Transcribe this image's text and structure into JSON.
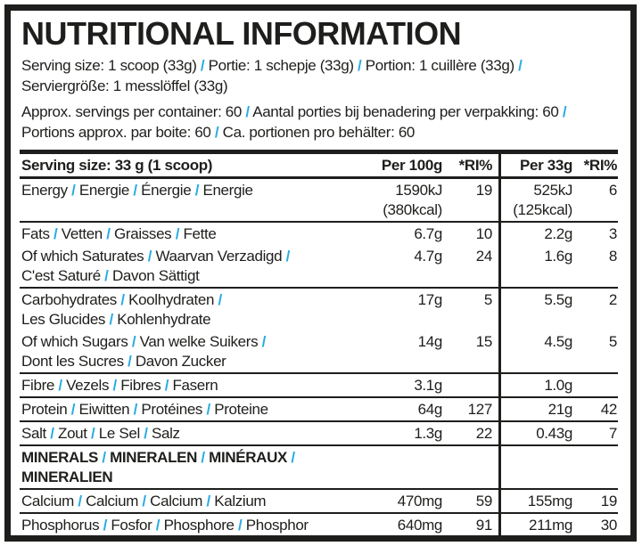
{
  "colors": {
    "ink": "#1e1e1c",
    "accent_blue": "#29abe2"
  },
  "title": "NUTRITIONAL INFORMATION",
  "intro": {
    "serving_size_line1": {
      "parts": [
        "Serving size: 1 scoop (33g)",
        "Portie: 1 schepje (33g)",
        "Portion: 1 cuillère (33g)"
      ],
      "cont": true
    },
    "serving_size_line2": {
      "parts": [
        "Serviergröße: 1 messlöffel (33g)"
      ],
      "cont": false
    },
    "servings_per_container": {
      "parts": [
        "Approx. servings per container: 60",
        "Aantal porties bij benadering per verpakking: 60",
        "Portions approx. par boite: 60",
        "Ca. portionen pro behälter: 60"
      ],
      "cont": false
    }
  },
  "table": {
    "header": {
      "serving_size": "Serving size: 33 g (1 scoop)",
      "per_100g": "Per 100g",
      "ri_1": "*RI%",
      "per_33g": "Per 33g",
      "ri_2": "*RI%"
    },
    "sections": [
      {
        "id": "energy",
        "rows": [
          {
            "label": [
              {
                "parts": [
                  "Energy",
                  "Energie",
                  "Énergie",
                  "Energie"
                ],
                "cont": false
              }
            ],
            "per100": [
              "1590kJ",
              "(380kcal)"
            ],
            "ri100": [
              "19"
            ],
            "per33": [
              "525kJ",
              "(125kcal)"
            ],
            "ri33": [
              "6"
            ]
          }
        ]
      },
      {
        "id": "fats",
        "rows": [
          {
            "label": [
              {
                "parts": [
                  "Fats",
                  "Vetten",
                  "Graisses",
                  "Fette"
                ],
                "cont": false
              }
            ],
            "per100": [
              "6.7g"
            ],
            "ri100": [
              "10"
            ],
            "per33": [
              "2.2g"
            ],
            "ri33": [
              "3"
            ]
          },
          {
            "label": [
              {
                "parts": [
                  "Of which Saturates",
                  "Waarvan Verzadigd"
                ],
                "cont": true
              },
              {
                "parts": [
                  "C'est Saturé",
                  "Davon Sättigt"
                ],
                "cont": false
              }
            ],
            "per100": [
              "4.7g"
            ],
            "ri100": [
              "24"
            ],
            "per33": [
              "1.6g"
            ],
            "ri33": [
              "8"
            ]
          }
        ]
      },
      {
        "id": "carbohydrates",
        "rows": [
          {
            "label": [
              {
                "parts": [
                  "Carbohydrates",
                  "Koolhydraten"
                ],
                "cont": true
              },
              {
                "parts": [
                  "Les Glucides",
                  "Kohlenhydrate"
                ],
                "cont": false
              }
            ],
            "per100": [
              "17g"
            ],
            "ri100": [
              "5"
            ],
            "per33": [
              "5.5g"
            ],
            "ri33": [
              "2"
            ]
          },
          {
            "label": [
              {
                "parts": [
                  "Of which Sugars",
                  "Van welke Suikers"
                ],
                "cont": true
              },
              {
                "parts": [
                  "Dont les Sucres",
                  "Davon Zucker"
                ],
                "cont": false
              }
            ],
            "per100": [
              "14g"
            ],
            "ri100": [
              "15"
            ],
            "per33": [
              "4.5g"
            ],
            "ri33": [
              "5"
            ]
          }
        ]
      },
      {
        "id": "fibre",
        "rows": [
          {
            "label": [
              {
                "parts": [
                  "Fibre",
                  "Vezels",
                  "Fibres",
                  "Fasern"
                ],
                "cont": false
              }
            ],
            "per100": [
              "3.1g"
            ],
            "ri100": [],
            "per33": [
              "1.0g"
            ],
            "ri33": []
          }
        ]
      },
      {
        "id": "protein",
        "rows": [
          {
            "label": [
              {
                "parts": [
                  "Protein",
                  "Eiwitten",
                  "Protéines",
                  "Proteine"
                ],
                "cont": false
              }
            ],
            "per100": [
              "64g"
            ],
            "ri100": [
              "127"
            ],
            "per33": [
              "21g"
            ],
            "ri33": [
              "42"
            ]
          }
        ]
      },
      {
        "id": "salt",
        "rows": [
          {
            "label": [
              {
                "parts": [
                  "Salt",
                  "Zout",
                  "Le Sel",
                  "Salz"
                ],
                "cont": false
              }
            ],
            "per100": [
              "1.3g"
            ],
            "ri100": [
              "22"
            ],
            "per33": [
              "0.43g"
            ],
            "ri33": [
              "7"
            ]
          }
        ]
      },
      {
        "id": "minerals-heading",
        "bold": true,
        "rows": [
          {
            "label": [
              {
                "parts": [
                  "MINERALS",
                  "MINERALEN",
                  "MINÉRAUX",
                  "MINERALIEN"
                ],
                "cont": false
              }
            ],
            "per100": [],
            "ri100": [],
            "per33": [],
            "ri33": []
          }
        ]
      },
      {
        "id": "calcium",
        "rows": [
          {
            "label": [
              {
                "parts": [
                  "Calcium",
                  "Calcium",
                  "Calcium",
                  "Kalzium"
                ],
                "cont": false
              }
            ],
            "per100": [
              "470mg"
            ],
            "ri100": [
              "59"
            ],
            "per33": [
              "155mg"
            ],
            "ri33": [
              "19"
            ]
          }
        ]
      },
      {
        "id": "phosphorus",
        "rows": [
          {
            "label": [
              {
                "parts": [
                  "Phosphorus",
                  "Fosfor",
                  "Phosphore",
                  "Phosphor"
                ],
                "cont": false
              }
            ],
            "per100": [
              "640mg"
            ],
            "ri100": [
              "91"
            ],
            "per33": [
              "211mg"
            ],
            "ri33": [
              "30"
            ]
          }
        ]
      }
    ]
  }
}
